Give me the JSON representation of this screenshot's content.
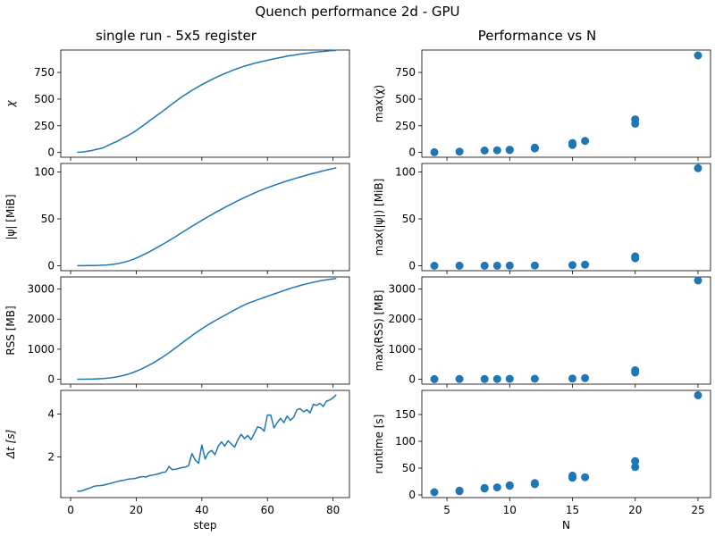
{
  "figure": {
    "suptitle": "Quench performance 2d - GPU",
    "left_title": "single run - 5x5 register",
    "right_title": "Performance vs N",
    "left_xlabel": "step",
    "right_xlabel": "N"
  },
  "colors": {
    "series": "#1f77b4",
    "axes": "#000000",
    "background": "#ffffff"
  },
  "chart_data": [
    {
      "type": "line",
      "panel": "chi-vs-step",
      "title": "single run - 5x5 register",
      "ylabel": "χ",
      "xlabel": "",
      "xlim": [
        -3,
        85
      ],
      "ylim": [
        -45,
        960
      ],
      "xticks": [
        0,
        20,
        40,
        60,
        80
      ],
      "yticks": [
        0,
        250,
        500,
        750
      ],
      "x_start": 2,
      "y": [
        2,
        3,
        5,
        10,
        15,
        22,
        30,
        35,
        45,
        60,
        75,
        88,
        100,
        118,
        135,
        150,
        168,
        185,
        205,
        228,
        250,
        272,
        295,
        318,
        340,
        362,
        385,
        408,
        432,
        455,
        478,
        500,
        522,
        542,
        562,
        582,
        600,
        618,
        635,
        652,
        668,
        683,
        698,
        712,
        726,
        740,
        752,
        765,
        777,
        788,
        798,
        808,
        818,
        826,
        835,
        842,
        850,
        857,
        864,
        871,
        878,
        884,
        890,
        896,
        902,
        907,
        912,
        917,
        922,
        926,
        930,
        934,
        938,
        941,
        944,
        947,
        950,
        953,
        955,
        958
      ],
      "grid": false,
      "legend": "none"
    },
    {
      "type": "line",
      "panel": "psi-vs-step",
      "ylabel": "|ψ| [MiB]",
      "xlabel": "",
      "xlim": [
        -3,
        85
      ],
      "ylim": [
        -5.2,
        109
      ],
      "xticks": [
        0,
        20,
        40,
        60,
        80
      ],
      "yticks": [
        0,
        50,
        100
      ],
      "x_start": 2,
      "y": [
        0.1,
        0.1,
        0.1,
        0.2,
        0.2,
        0.3,
        0.4,
        0.5,
        0.7,
        0.9,
        1.2,
        1.6,
        2.1,
        2.8,
        3.6,
        4.5,
        5.6,
        6.8,
        8.2,
        9.7,
        11.4,
        13.2,
        15.0,
        16.9,
        18.8,
        20.8,
        22.8,
        24.8,
        26.9,
        29.0,
        31.1,
        33.3,
        35.5,
        37.7,
        39.9,
        42.1,
        44.2,
        46.3,
        48.4,
        50.5,
        52.5,
        54.5,
        56.5,
        58.4,
        60.3,
        62.2,
        64.0,
        65.8,
        67.6,
        69.3,
        71.0,
        72.7,
        74.3,
        75.9,
        77.5,
        79.0,
        80.4,
        81.8,
        83.1,
        84.4,
        85.7,
        86.9,
        88.1,
        89.3,
        90.4,
        91.5,
        92.6,
        93.6,
        94.6,
        95.6,
        96.6,
        97.6,
        98.5,
        99.4,
        100.3,
        101.2,
        102.0,
        102.8,
        103.6,
        104.4
      ],
      "grid": false,
      "legend": "none"
    },
    {
      "type": "line",
      "panel": "rss-vs-step",
      "ylabel": "RSS [MB]",
      "xlabel": "",
      "xlim": [
        -3,
        85
      ],
      "ylim": [
        -160,
        3400
      ],
      "xticks": [
        0,
        20,
        40,
        60,
        80
      ],
      "yticks": [
        0,
        1000,
        2000,
        3000
      ],
      "x_start": 2,
      "y": [
        2,
        3,
        4,
        5,
        7,
        10,
        15,
        20,
        27,
        36,
        48,
        62,
        80,
        100,
        125,
        155,
        188,
        225,
        268,
        315,
        365,
        418,
        475,
        535,
        598,
        665,
        735,
        808,
        885,
        963,
        1043,
        1125,
        1208,
        1290,
        1372,
        1452,
        1530,
        1605,
        1678,
        1748,
        1815,
        1880,
        1943,
        2005,
        2065,
        2125,
        2185,
        2245,
        2305,
        2362,
        2418,
        2470,
        2518,
        2562,
        2603,
        2642,
        2680,
        2718,
        2756,
        2794,
        2832,
        2870,
        2908,
        2946,
        2984,
        3020,
        3054,
        3086,
        3116,
        3144,
        3171,
        3197,
        3222,
        3246,
        3268,
        3288,
        3306,
        3322,
        3336,
        3348
      ],
      "grid": false,
      "legend": "none"
    },
    {
      "type": "line",
      "panel": "dt-vs-step",
      "ylabel": "Δt [s]",
      "xlabel": "step",
      "xlim": [
        -3,
        85
      ],
      "ylim": [
        0.1,
        5.1
      ],
      "xticks": [
        0,
        20,
        40,
        60,
        80
      ],
      "yticks": [
        2,
        4
      ],
      "x": [
        2,
        3,
        4,
        5,
        6,
        7,
        8,
        9,
        10,
        11,
        12,
        13,
        14,
        15,
        16,
        17,
        18,
        19,
        20,
        21,
        22,
        23,
        24,
        25,
        26,
        27,
        28,
        29,
        30,
        31,
        32,
        33,
        34,
        35,
        36,
        37,
        38,
        39,
        40,
        41,
        42,
        43,
        44,
        45,
        46,
        47,
        48,
        49,
        50,
        51,
        52,
        53,
        54,
        55,
        56,
        57,
        58,
        59,
        60,
        61,
        62,
        63,
        64,
        65,
        66,
        67,
        68,
        69,
        70,
        71,
        72,
        73,
        74,
        75,
        76,
        77,
        78,
        79,
        80,
        81
      ],
      "y": [
        0.4,
        0.4,
        0.45,
        0.5,
        0.55,
        0.62,
        0.65,
        0.66,
        0.68,
        0.72,
        0.76,
        0.8,
        0.84,
        0.88,
        0.9,
        0.94,
        0.97,
        0.98,
        1.0,
        1.06,
        1.08,
        1.06,
        1.12,
        1.15,
        1.18,
        1.22,
        1.27,
        1.3,
        1.55,
        1.4,
        1.42,
        1.46,
        1.5,
        1.52,
        1.6,
        2.15,
        1.85,
        1.7,
        2.55,
        1.9,
        2.2,
        2.3,
        2.1,
        2.5,
        2.7,
        2.5,
        2.75,
        2.6,
        2.45,
        2.8,
        3.05,
        2.85,
        3.0,
        2.8,
        3.1,
        3.4,
        3.35,
        3.2,
        3.95,
        3.95,
        3.35,
        3.6,
        3.8,
        3.6,
        3.9,
        3.7,
        3.85,
        4.2,
        4.25,
        4.1,
        4.2,
        4.05,
        4.45,
        4.4,
        4.5,
        4.35,
        4.6,
        4.65,
        4.75,
        4.9
      ],
      "grid": false,
      "legend": "none"
    },
    {
      "type": "scatter",
      "panel": "max-chi-vs-N",
      "title": "Performance vs N",
      "ylabel": "max(χ)",
      "xlabel": "",
      "xlim": [
        3.0,
        26.0
      ],
      "ylim": [
        -45,
        960
      ],
      "xticks": [
        5,
        10,
        15,
        20,
        25
      ],
      "yticks": [
        0,
        250,
        500,
        750
      ],
      "x": [
        4,
        6,
        8,
        9,
        10,
        10,
        12,
        12,
        15,
        15,
        16,
        20,
        20,
        25
      ],
      "y": [
        2,
        8,
        18,
        20,
        25,
        22,
        45,
        38,
        70,
        88,
        108,
        310,
        270,
        910
      ],
      "grid": false,
      "legend": "none"
    },
    {
      "type": "scatter",
      "panel": "max-psi-vs-N",
      "ylabel": "max(|ψ|) [MiB]",
      "xlabel": "",
      "xlim": [
        3.0,
        26.0
      ],
      "ylim": [
        -5.2,
        109
      ],
      "xticks": [
        5,
        10,
        15,
        20,
        25
      ],
      "yticks": [
        0,
        50,
        100
      ],
      "x": [
        4,
        6,
        8,
        9,
        10,
        12,
        15,
        16,
        20,
        20,
        25
      ],
      "y": [
        0.0,
        0.1,
        0.1,
        0.1,
        0.2,
        0.3,
        0.8,
        1.2,
        10,
        8,
        104
      ],
      "grid": false,
      "legend": "none"
    },
    {
      "type": "scatter",
      "panel": "max-rss-vs-N",
      "ylabel": "max(RSS) [MB]",
      "xlabel": "",
      "xlim": [
        3.0,
        26.0
      ],
      "ylim": [
        -160,
        3400
      ],
      "xticks": [
        5,
        10,
        15,
        20,
        25
      ],
      "yticks": [
        0,
        1000,
        2000,
        3000
      ],
      "x": [
        4,
        6,
        8,
        9,
        10,
        12,
        15,
        16,
        20,
        20,
        25
      ],
      "y": [
        5,
        8,
        10,
        12,
        14,
        18,
        25,
        40,
        300,
        230,
        3280
      ],
      "grid": false,
      "legend": "none"
    },
    {
      "type": "scatter",
      "panel": "runtime-vs-N",
      "ylabel": "runtime [s]",
      "xlabel": "N",
      "xlim": [
        3.0,
        26.0
      ],
      "ylim": [
        -5,
        195
      ],
      "xticks": [
        5,
        10,
        15,
        20,
        25
      ],
      "yticks": [
        0,
        50,
        100,
        150
      ],
      "x": [
        4,
        6,
        6,
        8,
        8,
        9,
        10,
        10,
        12,
        12,
        15,
        15,
        16,
        20,
        20,
        25
      ],
      "y": [
        5,
        7,
        8,
        12,
        13,
        14,
        17,
        18,
        20,
        22,
        32,
        36,
        33,
        52,
        63,
        186
      ],
      "grid": false,
      "legend": "none"
    }
  ]
}
